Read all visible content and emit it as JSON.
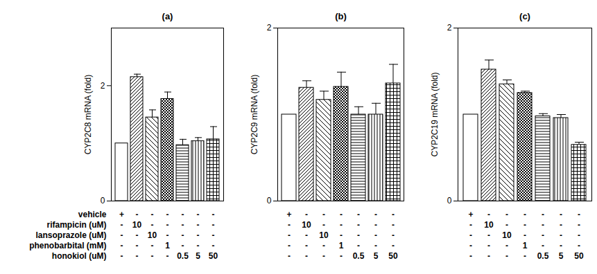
{
  "chart_data": [
    {
      "type": "bar",
      "title": "(a)",
      "y_label": "CYP2C8 mRNA (fold)",
      "categories": [
        null,
        null,
        null,
        null,
        null,
        null,
        null
      ],
      "values": [
        1.0,
        2.15,
        1.45,
        1.77,
        0.97,
        1.04,
        1.07
      ],
      "errors": [
        null,
        0.05,
        0.13,
        0.12,
        0.1,
        0.06,
        0.22
      ],
      "ylim": [
        0,
        3
      ],
      "yticks": [
        0,
        2
      ],
      "tick_labels": "y"
    },
    {
      "type": "bar",
      "title": "(b)",
      "y_label": "CYP2C9 mRNA (fold)",
      "categories": [
        null,
        null,
        null,
        null,
        null,
        null,
        null
      ],
      "values": [
        1.0,
        1.31,
        1.17,
        1.32,
        1.0,
        1.0,
        1.36
      ],
      "errors": [
        null,
        0.08,
        0.1,
        0.17,
        0.09,
        0.13,
        0.22
      ],
      "ylim": [
        0,
        2
      ],
      "yticks": [
        0,
        2
      ],
      "tick_labels": "y"
    },
    {
      "type": "bar",
      "title": "(c)",
      "y_label": "CYP2C19 mRNA (fold)",
      "categories": [
        null,
        null,
        null,
        null,
        null,
        null,
        null
      ],
      "values": [
        1.0,
        1.52,
        1.35,
        1.25,
        0.98,
        0.96,
        0.65
      ],
      "errors": [
        null,
        0.11,
        0.05,
        0.02,
        0.03,
        0.04,
        0.03
      ],
      "ylim": [
        0,
        2
      ],
      "yticks": [
        0,
        2
      ],
      "tick_labels": "y"
    }
  ],
  "treatments": [
    {
      "label": "vehicle",
      "cells": [
        "+",
        "-",
        "-",
        "-",
        "-",
        "-",
        "-"
      ]
    },
    {
      "label": "rifampicin (uM)",
      "cells": [
        "-",
        "10",
        "-",
        "-",
        "-",
        "-",
        "-"
      ]
    },
    {
      "label": "lansoprazole (uM)",
      "cells": [
        "-",
        "-",
        "10",
        "-",
        "-",
        "-",
        "-"
      ]
    },
    {
      "label": "phenobarbital (mM)",
      "cells": [
        "-",
        "-",
        "-",
        "1",
        "-",
        "-",
        "-"
      ]
    },
    {
      "label": "honokiol (uM)",
      "cells": [
        "-",
        "-",
        "-",
        "-",
        "0.5",
        "5",
        "50"
      ]
    }
  ]
}
